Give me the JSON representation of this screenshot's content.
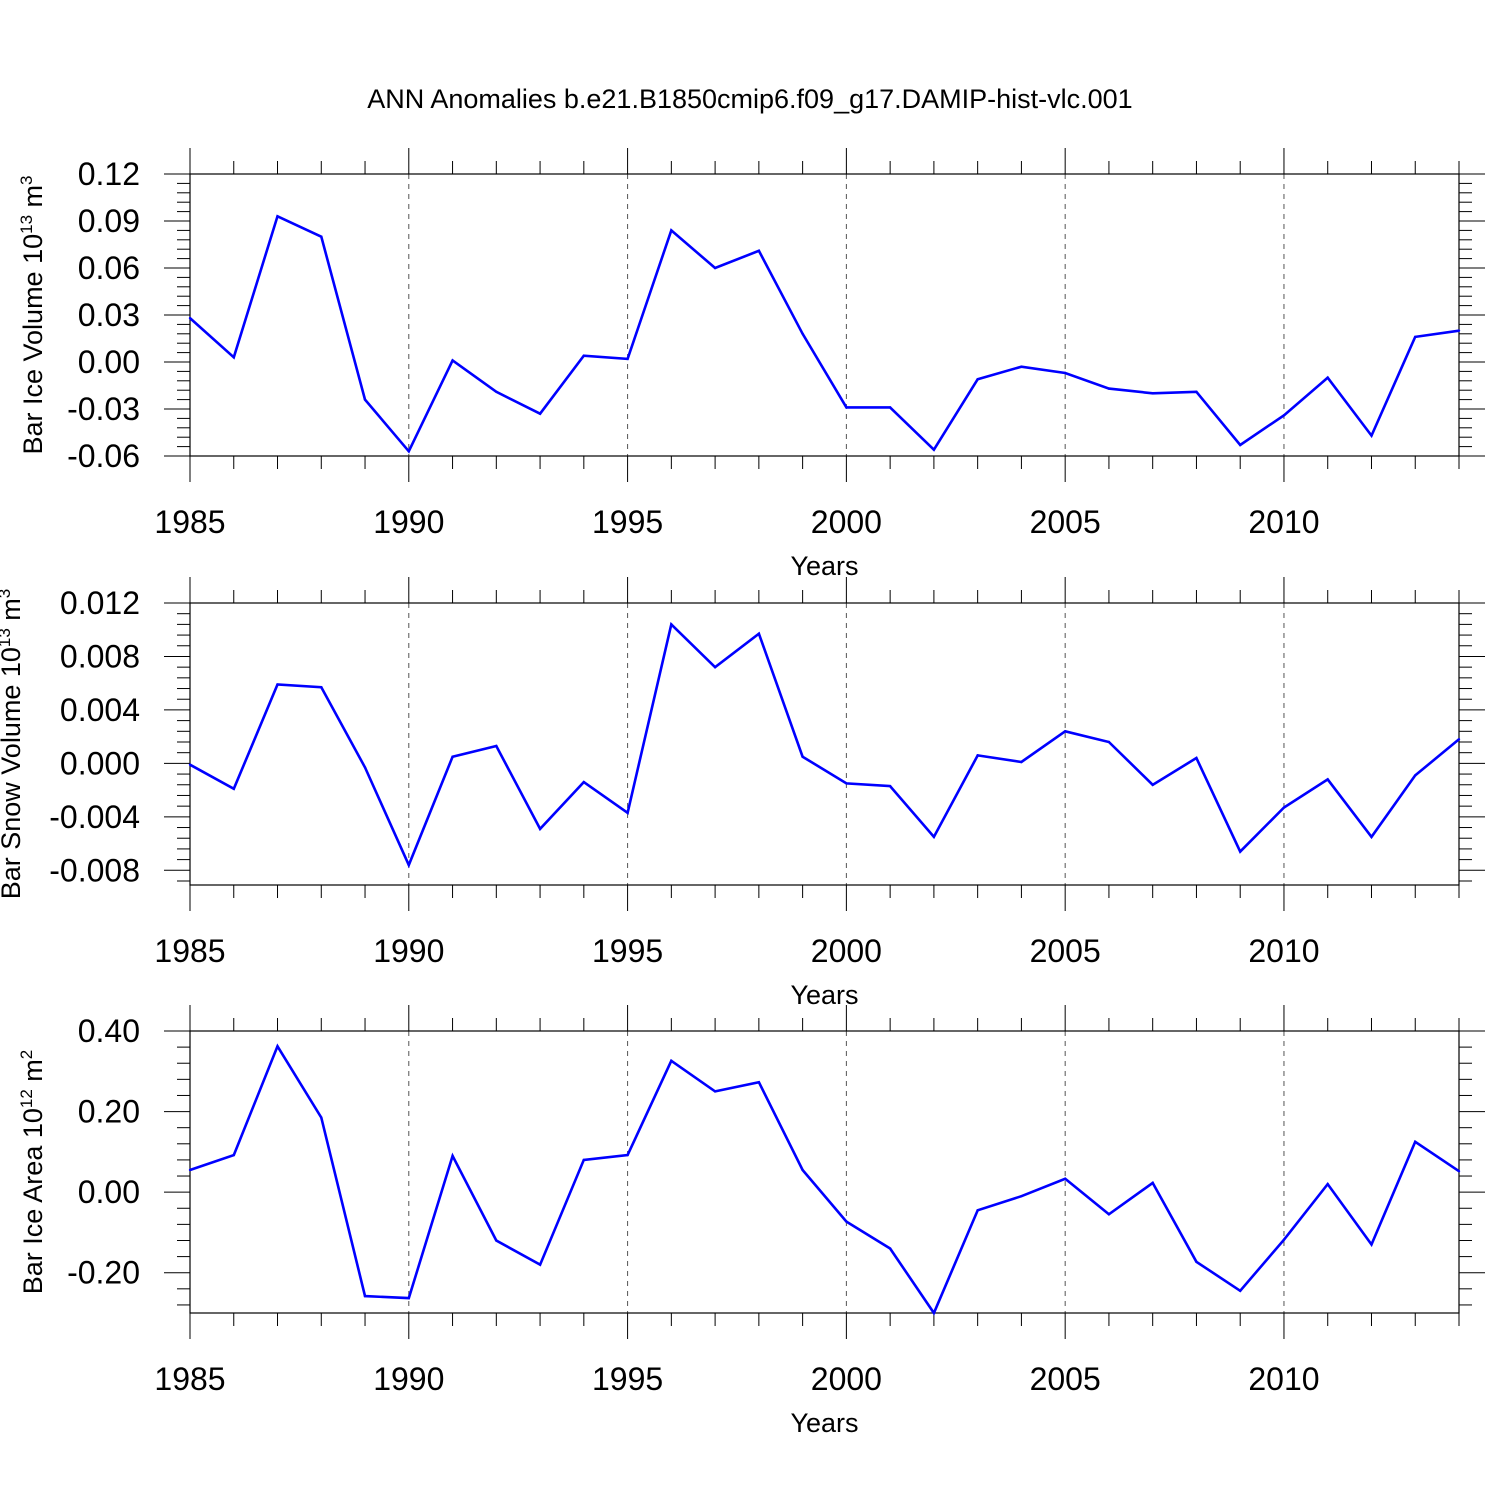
{
  "figure": {
    "title": "ANN Anomalies b.e21.B1850cmip6.f09_g17.DAMIP-hist-vlc.001"
  },
  "chart_data": [
    {
      "type": "line",
      "ylabel": "Bar Ice Volume 10",
      "ylabel_exp": "13",
      "ylabel_unit": " m",
      "ylabel_unit_exp": "3",
      "xlabel": "Years",
      "xlim": [
        1985,
        2014
      ],
      "ylim": [
        -0.06,
        0.12
      ],
      "x_ticks": [
        1985,
        1990,
        1995,
        2000,
        2005,
        2010
      ],
      "y_ticks": [
        -0.06,
        -0.03,
        0.0,
        0.03,
        0.06,
        0.09,
        0.12
      ],
      "y_tick_labels": [
        "-0.06",
        "-0.03",
        "0.00",
        "0.03",
        "0.06",
        "0.09",
        "0.12"
      ],
      "grid": "vertical dashed at major x ticks",
      "line_color": "#0000ff",
      "series": [
        {
          "x": [
            1985,
            1986,
            1987,
            1988,
            1989,
            1990,
            1991,
            1992,
            1993,
            1994,
            1995,
            1996,
            1997,
            1998,
            1999,
            2000,
            2001,
            2002,
            2003,
            2004,
            2005,
            2006,
            2007,
            2008,
            2009,
            2010,
            2011,
            2012,
            2013,
            2014
          ],
          "values": [
            0.028,
            0.003,
            0.093,
            0.08,
            -0.024,
            -0.057,
            0.001,
            -0.019,
            -0.033,
            0.004,
            0.002,
            0.084,
            0.06,
            0.071,
            0.018,
            -0.029,
            -0.029,
            -0.056,
            -0.011,
            -0.003,
            -0.007,
            -0.017,
            -0.02,
            -0.019,
            -0.053,
            -0.034,
            -0.01,
            -0.047,
            0.016,
            0.02
          ]
        }
      ]
    },
    {
      "type": "line",
      "ylabel": "Bar Snow Volume 10",
      "ylabel_exp": "13",
      "ylabel_unit": " m",
      "ylabel_unit_exp": "3",
      "xlabel": "Years",
      "xlim": [
        1985,
        2014
      ],
      "ylim": [
        -0.0091,
        0.012
      ],
      "x_ticks": [
        1985,
        1990,
        1995,
        2000,
        2005,
        2010
      ],
      "y_ticks": [
        -0.008,
        -0.004,
        0.0,
        0.004,
        0.008,
        0.012
      ],
      "y_tick_labels": [
        "-0.008",
        "-0.004",
        "0.000",
        "0.004",
        "0.008",
        "0.012"
      ],
      "grid": "vertical dashed at major x ticks",
      "line_color": "#0000ff",
      "series": [
        {
          "x": [
            1985,
            1986,
            1987,
            1988,
            1989,
            1990,
            1991,
            1992,
            1993,
            1994,
            1995,
            1996,
            1997,
            1998,
            1999,
            2000,
            2001,
            2002,
            2003,
            2004,
            2005,
            2006,
            2007,
            2008,
            2009,
            2010,
            2011,
            2012,
            2013,
            2014
          ],
          "values": [
            -0.0001,
            -0.0019,
            0.0059,
            0.0057,
            -0.0003,
            -0.0076,
            0.0005,
            0.0013,
            -0.0049,
            -0.0014,
            -0.0037,
            0.0104,
            0.0072,
            0.0097,
            0.0005,
            -0.0015,
            -0.0017,
            -0.0055,
            0.0006,
            0.0001,
            0.0024,
            0.0016,
            -0.0016,
            0.0004,
            -0.0066,
            -0.0033,
            -0.0012,
            -0.0055,
            -0.0009,
            0.0018
          ]
        }
      ]
    },
    {
      "type": "line",
      "ylabel": "Bar Ice Area 10",
      "ylabel_exp": "12",
      "ylabel_unit": " m",
      "ylabel_unit_exp": "2",
      "xlabel": "Years",
      "xlim": [
        1985,
        2014
      ],
      "ylim": [
        -0.3,
        0.4
      ],
      "x_ticks": [
        1985,
        1990,
        1995,
        2000,
        2005,
        2010
      ],
      "y_ticks": [
        -0.2,
        0.0,
        0.2,
        0.4
      ],
      "y_tick_labels": [
        "-0.20",
        "0.00",
        "0.20",
        "0.40"
      ],
      "grid": "vertical dashed at major x ticks",
      "line_color": "#0000ff",
      "series": [
        {
          "x": [
            1985,
            1986,
            1987,
            1988,
            1989,
            1990,
            1991,
            1992,
            1993,
            1994,
            1995,
            1996,
            1997,
            1998,
            1999,
            2000,
            2001,
            2002,
            2003,
            2004,
            2005,
            2006,
            2007,
            2008,
            2009,
            2010,
            2011,
            2012,
            2013,
            2014
          ],
          "values": [
            0.055,
            0.092,
            0.362,
            0.185,
            -0.258,
            -0.263,
            0.09,
            -0.12,
            -0.18,
            0.08,
            0.092,
            0.326,
            0.25,
            0.273,
            0.055,
            -0.073,
            -0.14,
            -0.3,
            -0.045,
            -0.01,
            0.033,
            -0.055,
            0.023,
            -0.173,
            -0.245,
            -0.118,
            0.02,
            -0.13,
            0.125,
            0.052
          ]
        }
      ]
    }
  ]
}
